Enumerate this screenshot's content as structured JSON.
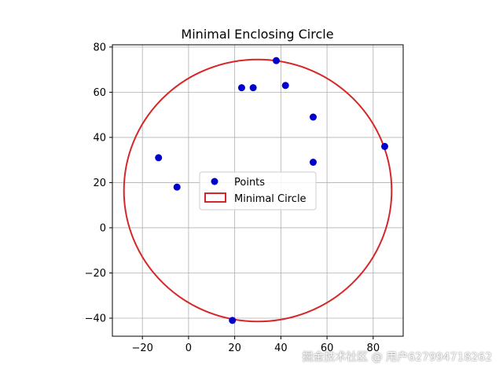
{
  "chart_data": {
    "type": "scatter",
    "title": "Minimal Enclosing Circle",
    "xlabel": "",
    "ylabel": "",
    "xlim": [
      -33,
      93
    ],
    "ylim": [
      -48,
      81
    ],
    "xticks": [
      -20,
      0,
      20,
      40,
      60,
      80
    ],
    "yticks": [
      -40,
      -20,
      0,
      20,
      40,
      60,
      80
    ],
    "grid": true,
    "legend_position": "center",
    "series": [
      {
        "name": "Points",
        "color": "#0000cc",
        "points": [
          {
            "x": -13,
            "y": 31
          },
          {
            "x": -5,
            "y": 18
          },
          {
            "x": 19,
            "y": -41
          },
          {
            "x": 23,
            "y": 62
          },
          {
            "x": 28,
            "y": 62
          },
          {
            "x": 38,
            "y": 74
          },
          {
            "x": 42,
            "y": 63
          },
          {
            "x": 54,
            "y": 49
          },
          {
            "x": 54,
            "y": 29
          },
          {
            "x": 85,
            "y": 36
          }
        ]
      }
    ],
    "circle": {
      "name": "Minimal Circle",
      "color": "#d62728",
      "center": {
        "x": 30,
        "y": 16.5
      },
      "radius": 58
    }
  },
  "watermark": "掘金技术社区 @ 用户627994718262"
}
